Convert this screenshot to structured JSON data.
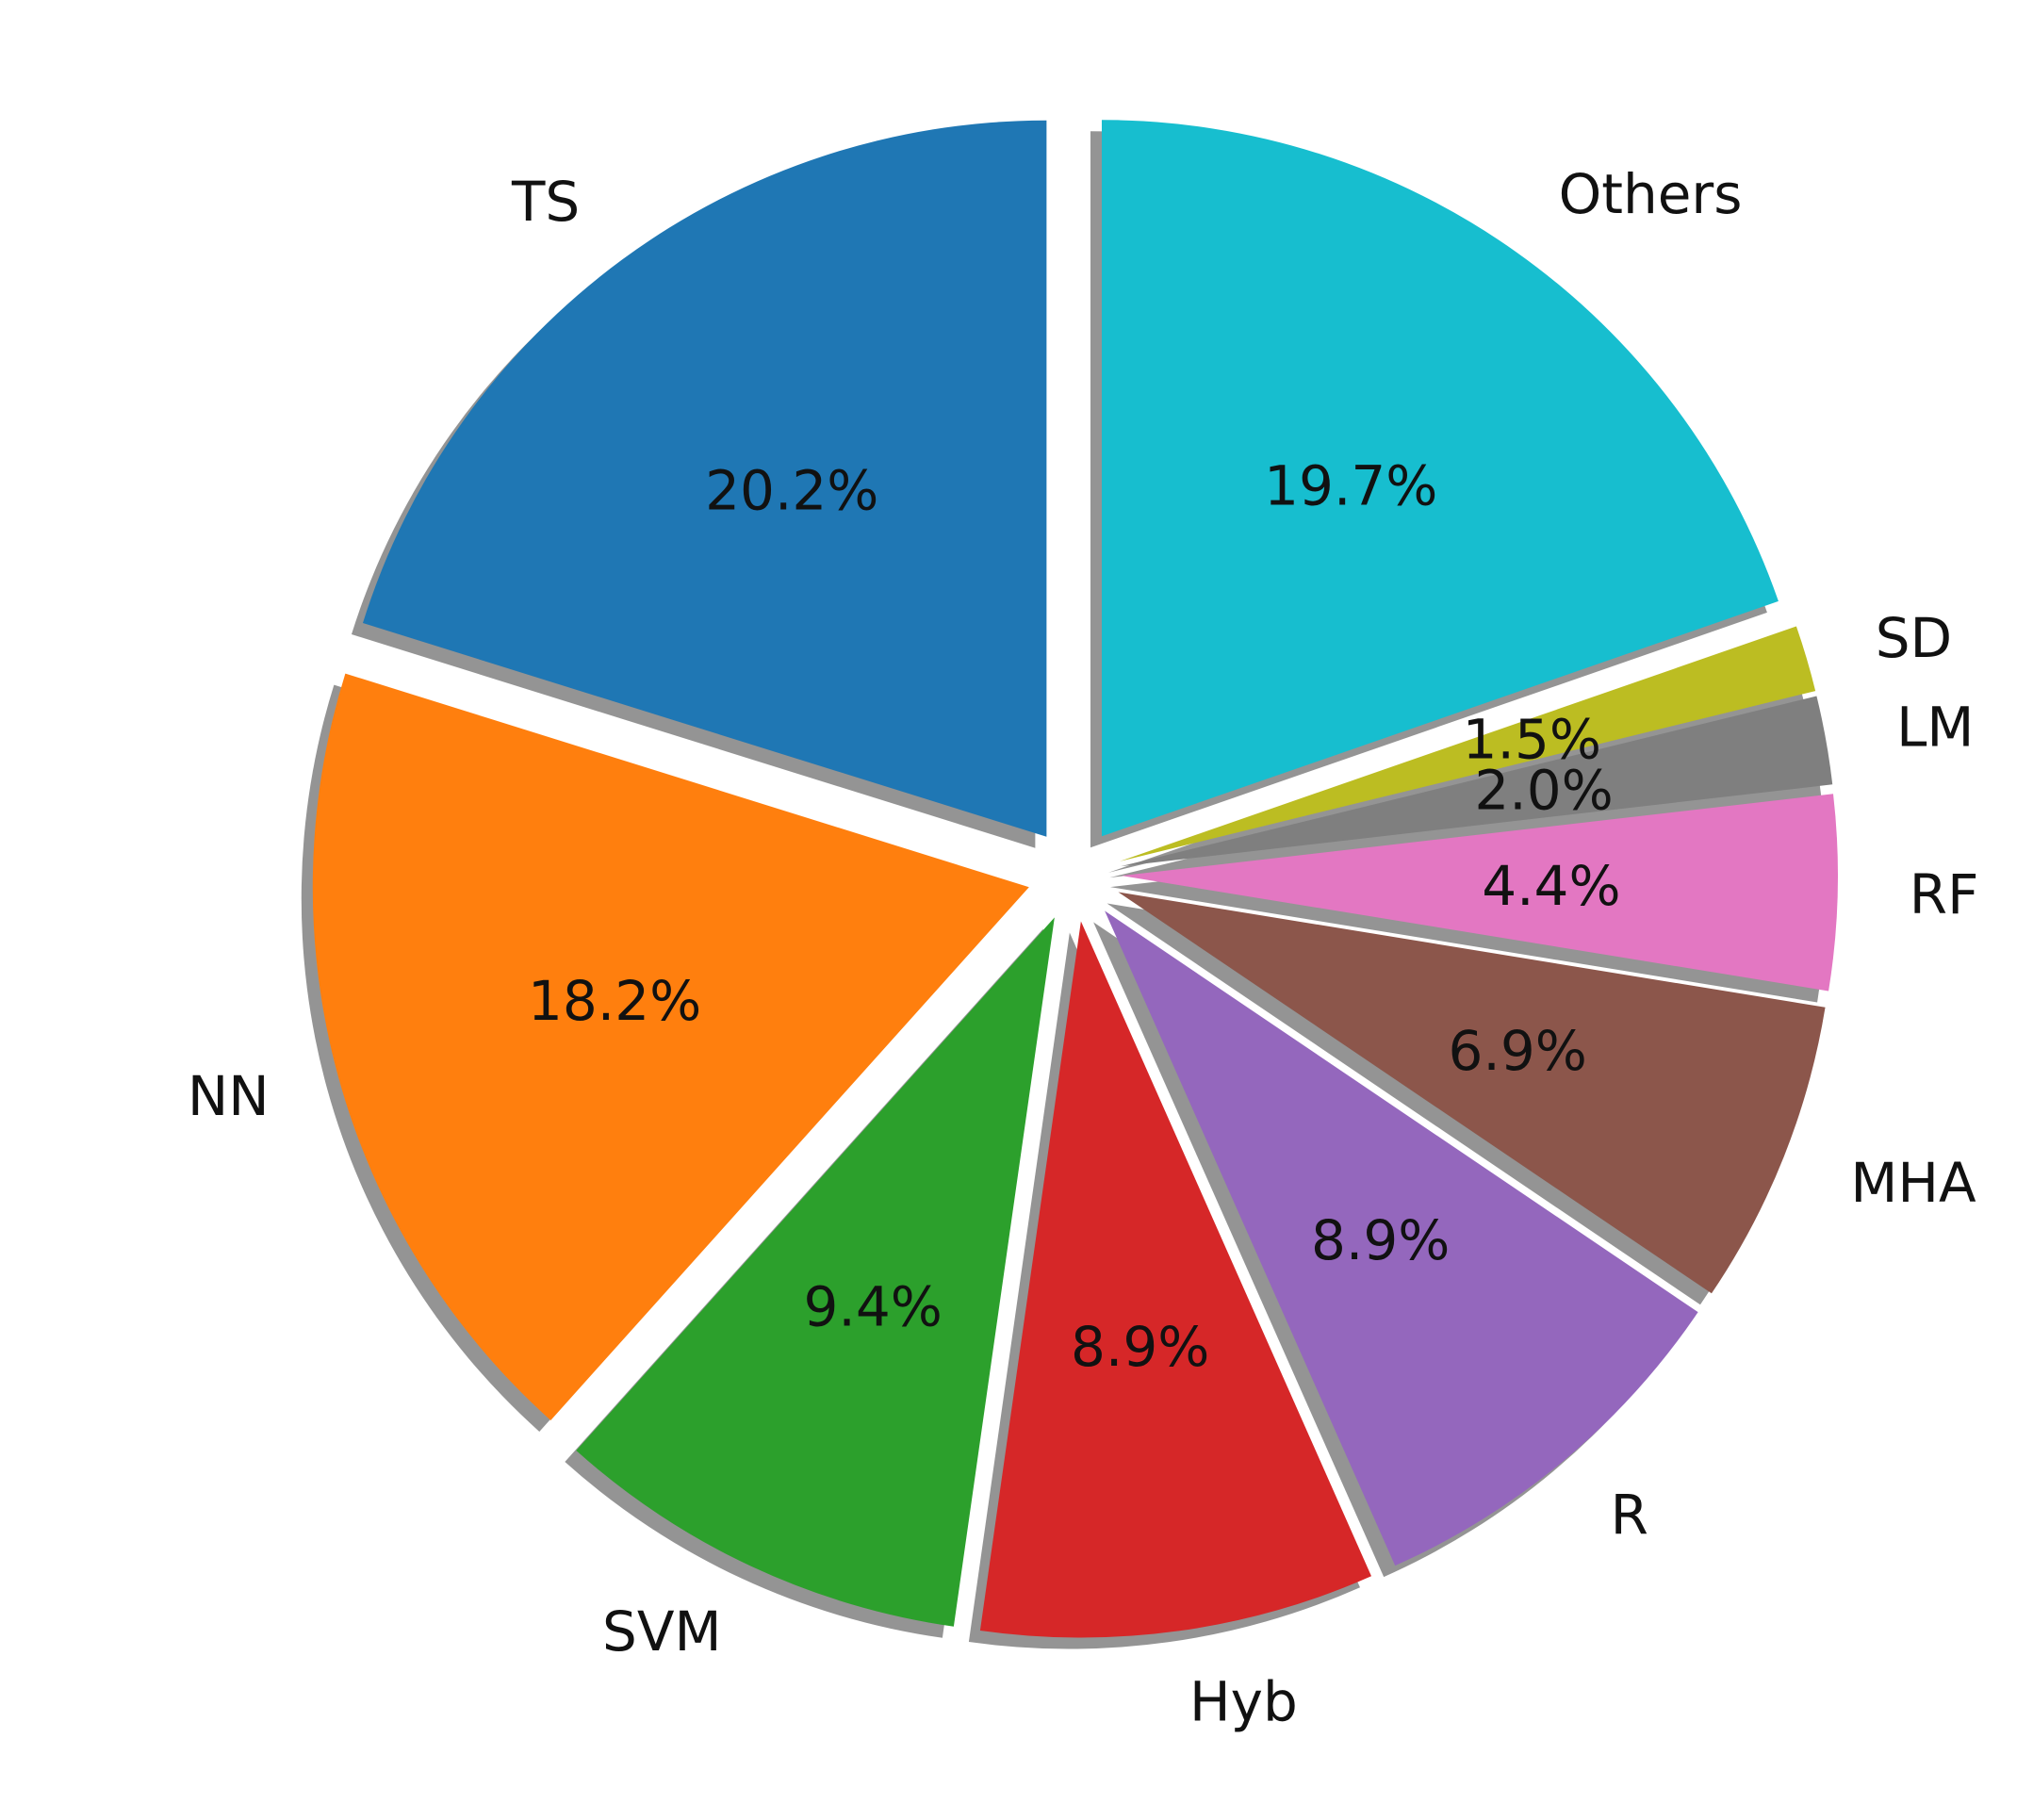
{
  "chart_data": {
    "type": "pie",
    "title": "",
    "categories": [
      "TS",
      "NN",
      "SVM",
      "Hyb",
      "R",
      "MHA",
      "RF",
      "LM",
      "SD",
      "Others"
    ],
    "values": [
      20.2,
      18.2,
      9.4,
      8.9,
      8.9,
      6.9,
      4.4,
      2.0,
      1.5,
      19.7
    ],
    "percent_labels": [
      "20.2%",
      "18.2%",
      "9.4%",
      "8.9%",
      "8.9%",
      "6.9%",
      "4.4%",
      "2.0%",
      "1.5%",
      "19.7%"
    ],
    "colors": [
      "#1f77b4",
      "#ff7f0e",
      "#2ca02c",
      "#d62728",
      "#9467bd",
      "#8c564b",
      "#e377c2",
      "#7f7f7f",
      "#bcbd22",
      "#17becf"
    ],
    "start_angle_deg": 90,
    "direction": "counterclockwise",
    "exploded": true,
    "shadow": true,
    "legend": "none"
  }
}
